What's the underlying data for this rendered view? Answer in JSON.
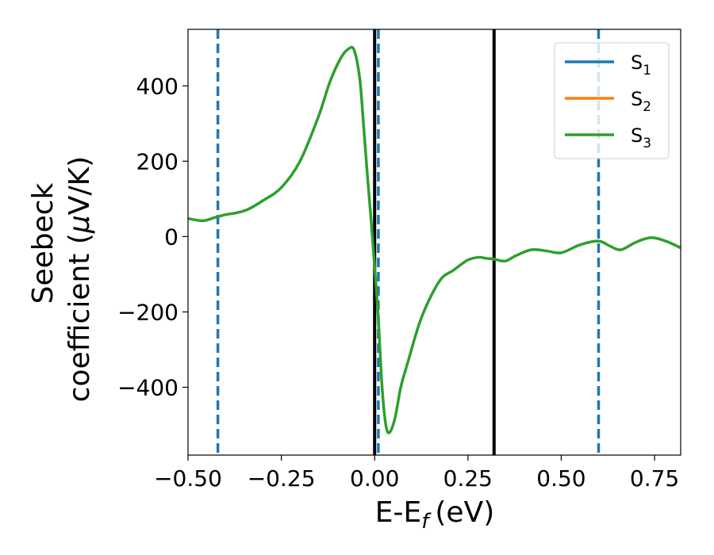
{
  "chart_data": {
    "type": "line",
    "xlabel": "E-E",
    "xlabel_sub": "f",
    "xlabel_unit": "(eV)",
    "ylabel_line1": "Seebeck",
    "ylabel_line2_prefix": "coefficient  (",
    "ylabel_mu": "μ",
    "ylabel_line2_suffix": "V/K)",
    "xlim": [
      -0.5,
      0.82
    ],
    "ylim": [
      -580,
      550
    ],
    "xticks": [
      -0.5,
      -0.25,
      0.0,
      0.25,
      0.5,
      0.75
    ],
    "xtick_labels": [
      "−0.50",
      "−0.25",
      "0.00",
      "0.25",
      "0.50",
      "0.75"
    ],
    "yticks": [
      400,
      200,
      0,
      -200,
      -400
    ],
    "ytick_labels": [
      "400",
      "200",
      "0",
      "−200",
      "−400"
    ],
    "legend_position": "top-right",
    "vlines_solid": [
      0.0,
      0.32
    ],
    "vlines_dashed": [
      -0.42,
      0.01,
      0.6
    ],
    "colors": {
      "S1": "#1f77b4",
      "S2": "#ff7f0e",
      "S3": "#2ca02c",
      "solid_vline": "#000000",
      "dashed_vline": "#1f77b4"
    },
    "series": [
      {
        "name": "S",
        "sub": "1",
        "color": "#1f77b4",
        "x": [],
        "y": []
      },
      {
        "name": "S",
        "sub": "2",
        "color": "#ff7f0e",
        "x": [],
        "y": []
      },
      {
        "name": "S",
        "sub": "3",
        "color": "#2ca02c",
        "x": [
          -0.5,
          -0.46,
          -0.43,
          -0.4,
          -0.37,
          -0.34,
          -0.3,
          -0.25,
          -0.2,
          -0.15,
          -0.12,
          -0.09,
          -0.07,
          -0.055,
          -0.04,
          -0.03,
          -0.02,
          -0.01,
          0.0,
          0.01,
          0.02,
          0.03,
          0.04,
          0.055,
          0.07,
          0.09,
          0.12,
          0.15,
          0.18,
          0.21,
          0.25,
          0.28,
          0.3,
          0.32,
          0.35,
          0.38,
          0.42,
          0.46,
          0.5,
          0.55,
          0.6,
          0.63,
          0.66,
          0.7,
          0.74,
          0.78,
          0.82
        ],
        "y": [
          48,
          42,
          50,
          58,
          63,
          72,
          95,
          130,
          200,
          320,
          410,
          475,
          498,
          495,
          420,
          300,
          170,
          50,
          -80,
          -220,
          -400,
          -500,
          -520,
          -480,
          -400,
          -330,
          -230,
          -160,
          -110,
          -90,
          -62,
          -55,
          -58,
          -60,
          -65,
          -50,
          -35,
          -38,
          -43,
          -22,
          -12,
          -25,
          -35,
          -15,
          -3,
          -12,
          -30
        ]
      }
    ]
  }
}
